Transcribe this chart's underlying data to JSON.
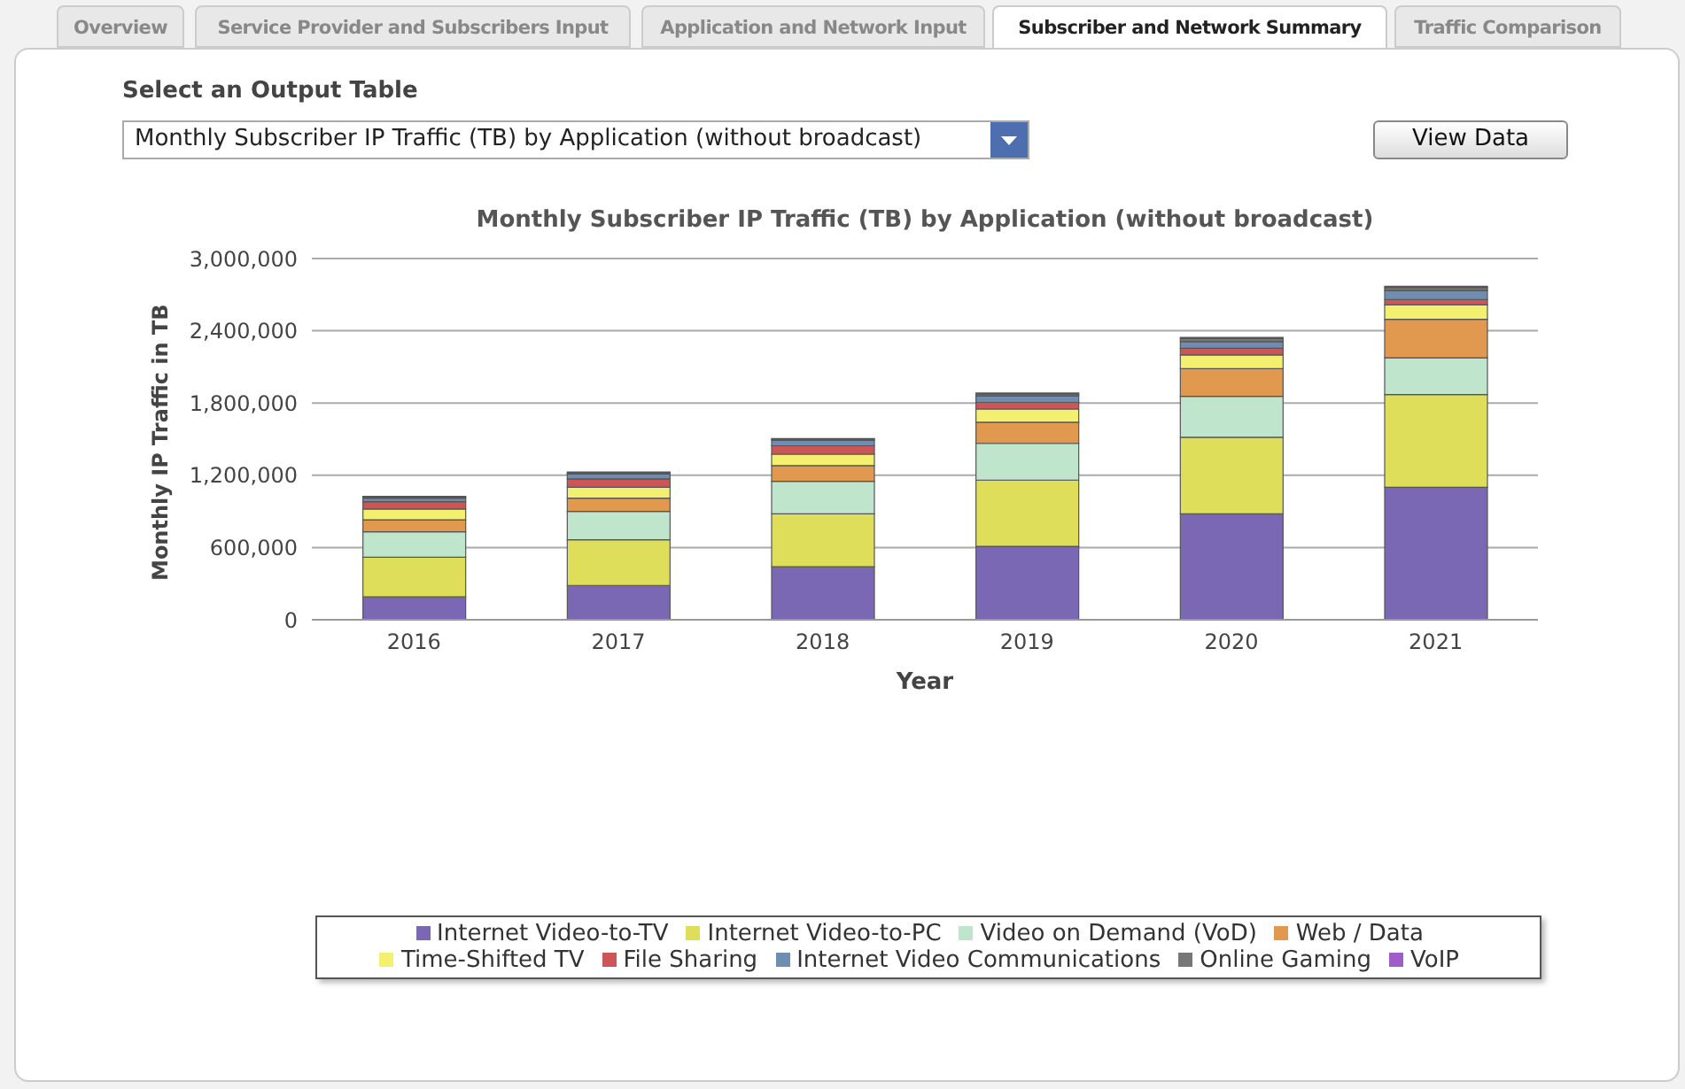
{
  "chart_data": {
    "type": "bar",
    "title": "Monthly Subscriber IP Traffic (TB) by Application (without broadcast)",
    "xlabel": "Year",
    "ylabel": "Monthly IP Traffic in TB",
    "annotations": [
      "Overview",
      "Service Provider and Subscribers Input",
      "Application and Network Input",
      "Subscriber and Network Summary",
      "Traffic Comparison",
      "Select an Output Table",
      "Monthly Subscriber IP Traffic (TB) by Application (without broadcast)",
      "View Data"
    ],
    "categories": [
      "2016",
      "2017",
      "2018",
      "2019",
      "2020",
      "2021"
    ],
    "stacked": true,
    "series": [
      {
        "name": "Internet Video-to-TV",
        "color": "#7b68b5",
        "values": [
          190000,
          285000,
          440000,
          610000,
          880000,
          1100000
        ]
      },
      {
        "name": "Internet Video-to-PC",
        "color": "#dede5a",
        "values": [
          330000,
          380000,
          440000,
          550000,
          635000,
          770000
        ]
      },
      {
        "name": "Video on Demand (VoD)",
        "color": "#bfe6cc",
        "values": [
          210000,
          235000,
          270000,
          305000,
          340000,
          305000
        ]
      },
      {
        "name": "Web / Data",
        "color": "#e0994f",
        "values": [
          100000,
          110000,
          130000,
          175000,
          230000,
          320000
        ]
      },
      {
        "name": "Time-Shifted TV",
        "color": "#f2f06e",
        "values": [
          90000,
          90000,
          95000,
          110000,
          115000,
          120000
        ]
      },
      {
        "name": "File Sharing",
        "color": "#cc5555",
        "values": [
          60000,
          70000,
          70000,
          55000,
          55000,
          45000
        ]
      },
      {
        "name": "Internet Video Communications",
        "color": "#6e8db0",
        "values": [
          30000,
          40000,
          45000,
          55000,
          55000,
          75000
        ]
      },
      {
        "name": "Online Gaming",
        "color": "#777777",
        "values": [
          10000,
          12000,
          10000,
          15000,
          25000,
          25000
        ]
      },
      {
        "name": "VoIP",
        "color": "#a05cc8",
        "values": [
          5000,
          5000,
          5000,
          8000,
          10000,
          10000
        ]
      }
    ],
    "ylim": [
      0,
      3000000
    ],
    "yticks": [
      0,
      {
        "value": 600000,
        "label": "600,000"
      },
      {
        "value": 1200000,
        "label": "1,200,000"
      },
      {
        "value": 1800000,
        "label": "1,800,000"
      },
      {
        "value": 2400000,
        "label": "2,400,000"
      },
      {
        "value": 3000000,
        "label": "3,000,000"
      }
    ],
    "grid": "y",
    "legend": "bottom"
  }
}
